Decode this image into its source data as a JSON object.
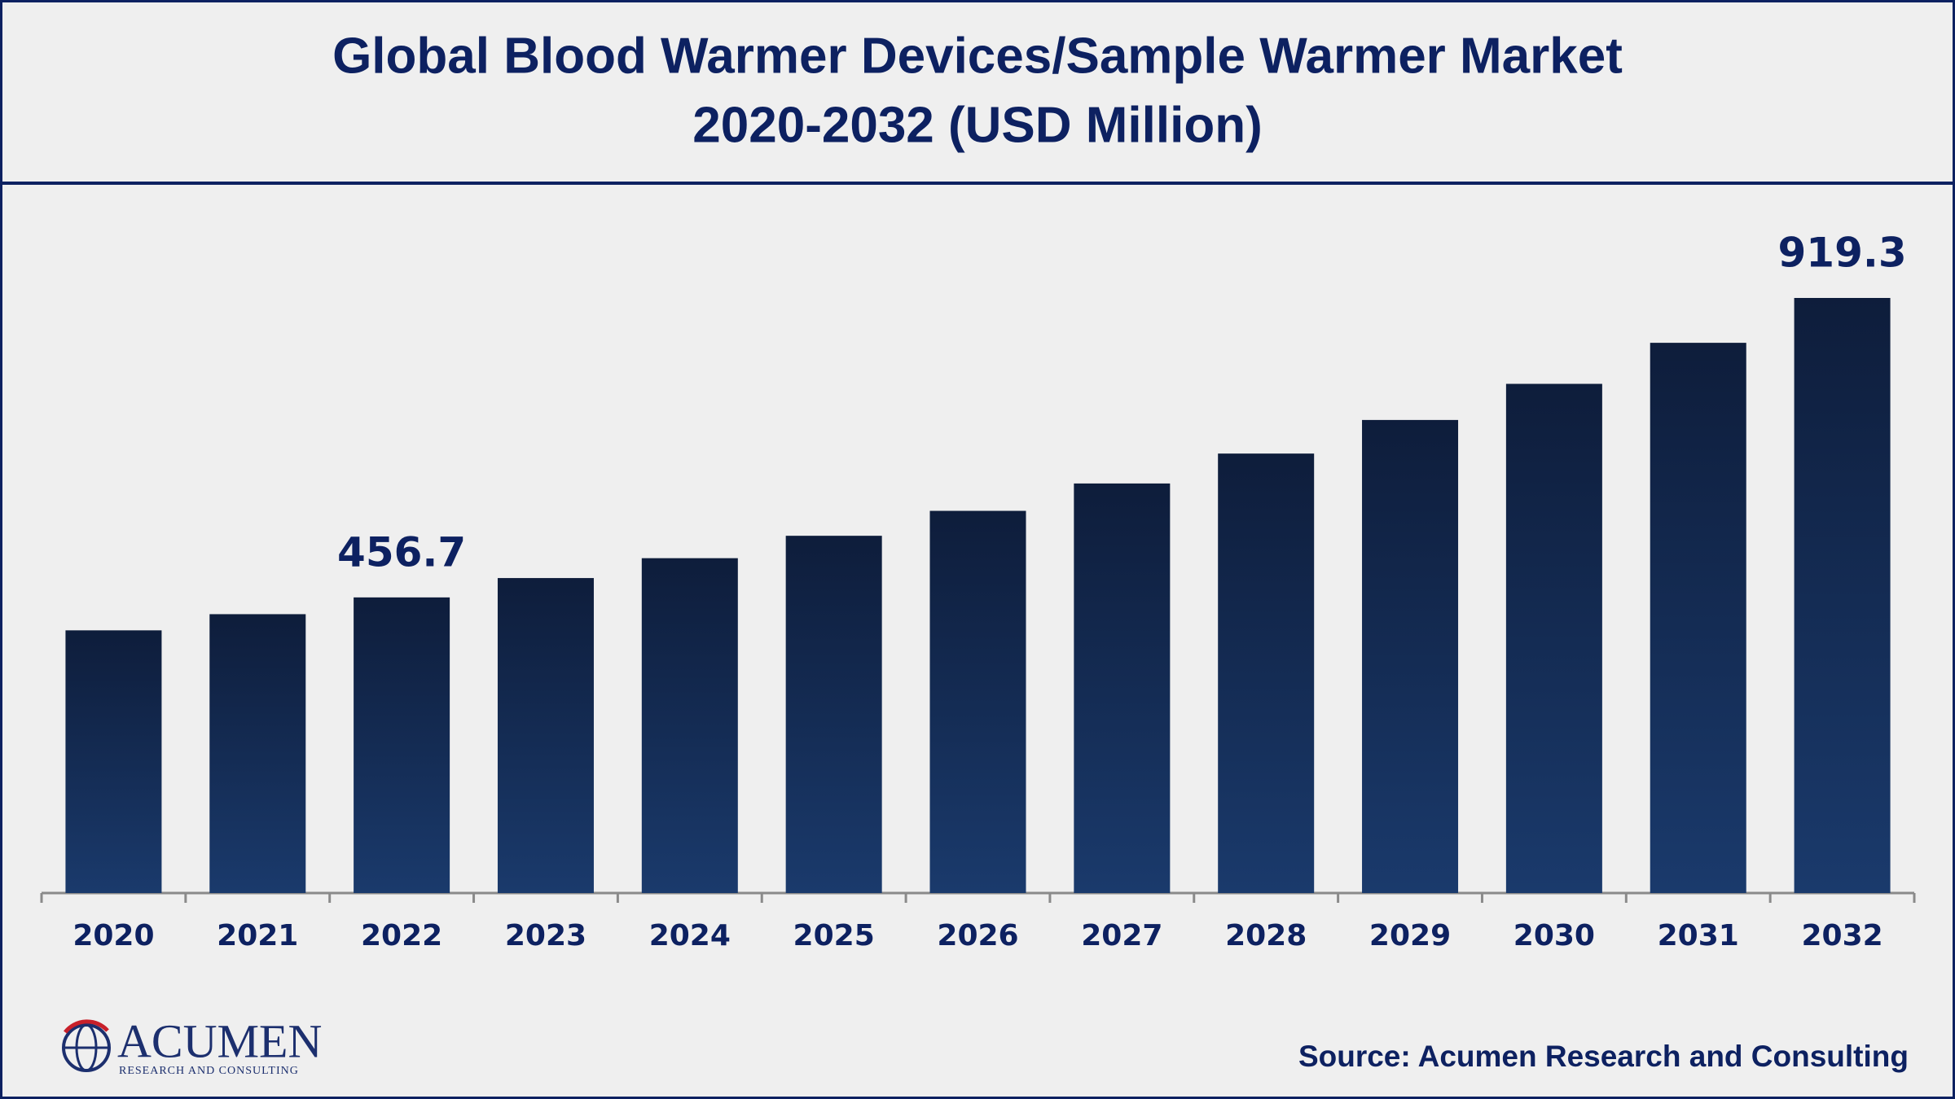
{
  "chart_data": {
    "type": "bar",
    "title": "Global Blood Warmer Devices/Sample Warmer Market",
    "subtitle": "2020-2032 (USD Million)",
    "categories": [
      "2020",
      "2021",
      "2022",
      "2023",
      "2024",
      "2025",
      "2026",
      "2027",
      "2028",
      "2029",
      "2030",
      "2031",
      "2032"
    ],
    "values": [
      405.8,
      430.8,
      456.7,
      486.6,
      517.3,
      551.9,
      590.4,
      632.7,
      678.9,
      730.8,
      786.6,
      850.0,
      919.3
    ],
    "value_labels": [
      null,
      null,
      "456.7",
      null,
      null,
      null,
      null,
      null,
      null,
      null,
      null,
      null,
      "919.3"
    ],
    "color": "#1a3a6c",
    "source": "Source: Acumen Research and Consulting",
    "logo": {
      "name": "ACUMEN",
      "tagline": "RESEARCH AND CONSULTING"
    }
  }
}
